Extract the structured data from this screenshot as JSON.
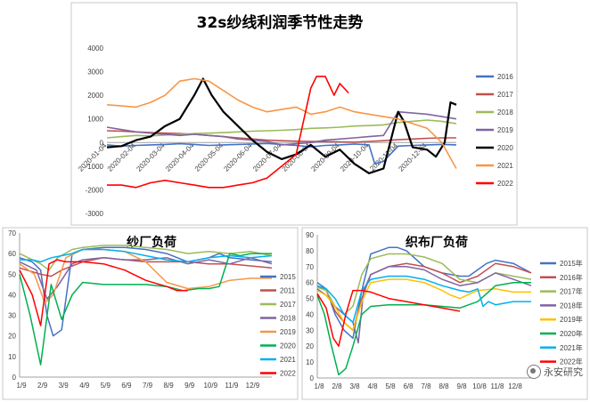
{
  "watermark": "永安研究",
  "chart_data": [
    {
      "type": "line",
      "title": "32s纱线利润季节性走势",
      "yticks": [
        4000,
        3000,
        2000,
        1000,
        0,
        -1000,
        -2000,
        -3000
      ],
      "ylim": [
        -3000,
        4000
      ],
      "xticks": [
        "2020-01-04",
        "2020-02-04",
        "2020-03-04",
        "2020-04-04",
        "2020-05-04",
        "2020-06-04",
        "2020-07-04",
        "2020-08-04",
        "2020-09-04",
        "2020-10-04",
        "2020-11-04",
        "2020-12-04"
      ],
      "xlim": [
        0,
        12
      ],
      "series": [
        {
          "name": "2016",
          "color": "#4472C4",
          "width": 1.6,
          "x": [
            0,
            0.5,
            1,
            1.5,
            2,
            2.5,
            3,
            3.5,
            4,
            4.5,
            5,
            5.5,
            6,
            6.5,
            7,
            7.5,
            8,
            8.5,
            9,
            9.2,
            9.5,
            10,
            10.5,
            11,
            11.5,
            12
          ],
          "y": [
            -100,
            -150,
            -120,
            -100,
            -80,
            -50,
            -80,
            -120,
            -100,
            -80,
            -60,
            -40,
            -80,
            -120,
            -180,
            -120,
            -100,
            -60,
            -100,
            -900,
            -800,
            -150,
            -120,
            -100,
            -80,
            -100
          ]
        },
        {
          "name": "2017",
          "color": "#C0504D",
          "width": 1.6,
          "x": [
            0,
            0.5,
            1,
            1.5,
            2,
            2.5,
            3,
            3.5,
            4,
            4.5,
            5,
            5.5,
            6,
            6.5,
            7,
            7.5,
            8,
            8.5,
            9,
            9.5,
            10,
            10.5,
            11,
            11.5,
            12
          ],
          "y": [
            500,
            480,
            450,
            420,
            400,
            380,
            350,
            300,
            250,
            200,
            150,
            100,
            80,
            60,
            50,
            40,
            30,
            20,
            50,
            80,
            120,
            150,
            180,
            200,
            200
          ]
        },
        {
          "name": "2018",
          "color": "#9BBB59",
          "width": 1.6,
          "x": [
            0,
            0.5,
            1,
            1.5,
            2,
            2.5,
            3,
            3.5,
            4,
            4.5,
            5,
            5.5,
            6,
            6.5,
            7,
            7.5,
            8,
            8.5,
            9,
            9.5,
            10,
            10.5,
            11,
            11.5,
            12
          ],
          "y": [
            200,
            250,
            300,
            280,
            320,
            350,
            380,
            400,
            420,
            450,
            480,
            500,
            520,
            550,
            600,
            620,
            650,
            700,
            720,
            750,
            850,
            900,
            950,
            900,
            800
          ]
        },
        {
          "name": "2019",
          "color": "#8064A2",
          "width": 1.6,
          "x": [
            0,
            0.5,
            1,
            1.5,
            2,
            2.5,
            3,
            3.5,
            4,
            4.5,
            5,
            5.5,
            6,
            6.5,
            7,
            7.5,
            8,
            8.5,
            9,
            9.5,
            10,
            10.5,
            11,
            11.5,
            12
          ],
          "y": [
            650,
            550,
            450,
            400,
            350,
            300,
            350,
            300,
            250,
            150,
            100,
            50,
            -100,
            -50,
            0,
            100,
            150,
            200,
            250,
            300,
            1300,
            1250,
            1200,
            1100,
            1000
          ]
        },
        {
          "name": "2020",
          "color": "#000000",
          "width": 2.2,
          "x": [
            0,
            0.5,
            1,
            1.5,
            2,
            2.5,
            3,
            3.3,
            3.6,
            4,
            4.5,
            5,
            5.5,
            6,
            6.5,
            7,
            7.5,
            8,
            8.5,
            9,
            9.5,
            10,
            10.2,
            10.5,
            11,
            11.3,
            11.6,
            11.8,
            12
          ],
          "y": [
            -200,
            -150,
            100,
            250,
            700,
            1000,
            2000,
            2700,
            2000,
            1300,
            700,
            100,
            -400,
            -700,
            -500,
            -100,
            -600,
            -300,
            -900,
            -1300,
            -1100,
            1300,
            900,
            -200,
            -300,
            -600,
            0,
            1700,
            1600
          ]
        },
        {
          "name": "2021",
          "color": "#F79646",
          "width": 1.6,
          "x": [
            0,
            0.5,
            1,
            1.5,
            2,
            2.5,
            3,
            3.5,
            4,
            4.5,
            5,
            5.5,
            6,
            6.5,
            7,
            7.5,
            8,
            8.5,
            9,
            9.5,
            10,
            10.5,
            11,
            11.5,
            12
          ],
          "y": [
            1600,
            1550,
            1500,
            1700,
            2000,
            2600,
            2700,
            2600,
            2200,
            1800,
            1500,
            1300,
            1400,
            1500,
            1200,
            1300,
            1500,
            1300,
            1200,
            1100,
            1000,
            800,
            600,
            0,
            -1100
          ]
        },
        {
          "name": "2022",
          "color": "#FF0000",
          "width": 1.6,
          "x": [
            0,
            0.5,
            1,
            1.5,
            2,
            2.5,
            3,
            3.5,
            4,
            4.5,
            5,
            5.5,
            6,
            6.5,
            7,
            7.2,
            7.5,
            7.8,
            8,
            8.3
          ],
          "y": [
            -1800,
            -1800,
            -1900,
            -1700,
            -1600,
            -1700,
            -1800,
            -1900,
            -1900,
            -1800,
            -1700,
            -1500,
            -1000,
            -500,
            2300,
            2800,
            2800,
            2000,
            2500,
            2100
          ]
        }
      ]
    },
    {
      "type": "line",
      "title": "纱厂负荷",
      "yticks": [
        70,
        60,
        50,
        40,
        30,
        20,
        10,
        0
      ],
      "ylim": [
        0,
        70
      ],
      "xticks": [
        "1/9",
        "2/9",
        "3/9",
        "4/9",
        "5/9",
        "6/9",
        "7/9",
        "8/9",
        "9/9",
        "10/9",
        "11/9",
        "12/9"
      ],
      "xlim": [
        0,
        12
      ],
      "series": [
        {
          "name": "2015",
          "color": "#4472C4",
          "width": 1.5,
          "x": [
            0,
            0.6,
            1,
            1.3,
            1.6,
            2,
            2.5,
            3,
            4,
            5,
            6,
            7,
            8,
            9,
            9.5,
            10,
            11,
            12
          ],
          "y": [
            58,
            56,
            52,
            30,
            20,
            23,
            60,
            62,
            63,
            63,
            62,
            60,
            56,
            58,
            60,
            58,
            57,
            56
          ]
        },
        {
          "name": "2011",
          "color": "#C0504D",
          "width": 1.5,
          "x": [
            0,
            1,
            1.5,
            2,
            3,
            4,
            5,
            6,
            7,
            8,
            9,
            10,
            11,
            12
          ],
          "y": [
            53,
            50,
            49,
            52,
            56,
            58,
            57,
            56,
            56,
            56,
            55,
            55,
            54,
            53
          ]
        },
        {
          "name": "2017",
          "color": "#9BBB59",
          "width": 1.5,
          "x": [
            0,
            1,
            1.4,
            1.8,
            2.5,
            3,
            4,
            5,
            6,
            7,
            8,
            9,
            10,
            11,
            12
          ],
          "y": [
            60,
            55,
            52,
            58,
            62,
            63,
            64,
            64,
            63,
            62,
            60,
            61,
            60,
            61,
            59
          ]
        },
        {
          "name": "2018",
          "color": "#8064A2",
          "width": 1.5,
          "x": [
            0,
            0.8,
            1.3,
            1.8,
            2.5,
            3,
            4,
            5,
            6,
            7,
            8,
            9,
            10,
            11,
            12
          ],
          "y": [
            56,
            52,
            38,
            44,
            55,
            57,
            58,
            57,
            57,
            58,
            55,
            57,
            55,
            58,
            55
          ]
        },
        {
          "name": "2019",
          "color": "#F79646",
          "width": 1.5,
          "x": [
            0,
            0.7,
            1.2,
            1.6,
            2.2,
            3,
            4,
            5,
            6,
            7,
            8,
            9,
            10,
            11,
            12
          ],
          "y": [
            55,
            50,
            36,
            40,
            58,
            62,
            62,
            61,
            56,
            46,
            43,
            44,
            47,
            48,
            48
          ]
        },
        {
          "name": "2020",
          "color": "#00B050",
          "width": 1.5,
          "x": [
            0,
            0.5,
            1,
            1.5,
            2,
            2.5,
            3,
            4,
            5,
            6,
            7,
            7.8,
            8.5,
            9,
            9.5,
            10,
            10.5,
            11,
            12
          ],
          "y": [
            50,
            30,
            6,
            45,
            28,
            40,
            46,
            45,
            45,
            45,
            44,
            42,
            43,
            43,
            44,
            60,
            59,
            60,
            60
          ]
        },
        {
          "name": "2021",
          "color": "#00B0F0",
          "width": 1.5,
          "x": [
            0,
            0.6,
            1,
            1.5,
            2,
            2.5,
            3,
            4,
            5,
            6,
            7,
            8,
            9,
            10,
            11,
            12
          ],
          "y": [
            57,
            57,
            56,
            58,
            59,
            60,
            62,
            62,
            61,
            59,
            57,
            56,
            58,
            59,
            58,
            59
          ]
        },
        {
          "name": "2022",
          "color": "#FF0000",
          "width": 1.5,
          "x": [
            0,
            0.6,
            1,
            1.4,
            1.8,
            2.2,
            3,
            4,
            5,
            6,
            7,
            7.5,
            8
          ],
          "y": [
            52,
            40,
            25,
            55,
            57,
            56,
            56,
            55,
            52,
            47,
            44,
            42,
            42
          ]
        }
      ]
    },
    {
      "type": "line",
      "title": "织布厂负荷",
      "yticks": [
        90,
        80,
        70,
        60,
        50,
        40,
        30,
        20,
        10,
        0
      ],
      "ylim": [
        0,
        90
      ],
      "xticks": [
        "1/8",
        "2/8",
        "3/8",
        "4/8",
        "5/8",
        "6/8",
        "7/8",
        "8/8",
        "9/8",
        "10/8",
        "11/8",
        "12/8"
      ],
      "xlim": [
        0,
        12
      ],
      "series": [
        {
          "name": "2015年",
          "color": "#4472C4",
          "width": 1.5,
          "x": [
            0,
            0.5,
            1,
            1.5,
            2,
            2.5,
            3,
            3.5,
            4,
            4.5,
            5,
            6,
            7,
            8,
            8.5,
            9,
            9.5,
            10,
            11,
            12
          ],
          "y": [
            60,
            56,
            40,
            30,
            25,
            55,
            78,
            80,
            82,
            82,
            80,
            70,
            66,
            64,
            64,
            68,
            72,
            74,
            72,
            66
          ]
        },
        {
          "name": "2016年",
          "color": "#C0504D",
          "width": 1.5,
          "x": [
            0,
            0.5,
            1,
            1.5,
            2,
            2.5,
            3,
            4,
            5,
            6,
            7,
            8,
            9,
            10,
            11,
            12
          ],
          "y": [
            58,
            55,
            42,
            35,
            30,
            50,
            65,
            70,
            72,
            70,
            66,
            60,
            64,
            72,
            70,
            66
          ]
        },
        {
          "name": "2017年",
          "color": "#9BBB59",
          "width": 1.5,
          "x": [
            0,
            0.5,
            1,
            1.5,
            2,
            2.5,
            3,
            4,
            5,
            6,
            7,
            8,
            9,
            10,
            11,
            12
          ],
          "y": [
            57,
            55,
            45,
            40,
            45,
            65,
            75,
            78,
            78,
            76,
            72,
            62,
            60,
            66,
            64,
            62
          ]
        },
        {
          "name": "2018年",
          "color": "#8064A2",
          "width": 1.5,
          "x": [
            0,
            0.5,
            1,
            1.5,
            2,
            2.3,
            2.6,
            3,
            4,
            5,
            6,
            7,
            8,
            9,
            10,
            11,
            12
          ],
          "y": [
            56,
            52,
            45,
            40,
            35,
            22,
            55,
            65,
            70,
            70,
            68,
            62,
            58,
            60,
            66,
            62,
            58
          ]
        },
        {
          "name": "2019年",
          "color": "#FFC000",
          "width": 1.5,
          "x": [
            0,
            0.5,
            1,
            1.5,
            2,
            2.5,
            3,
            4,
            5,
            6,
            7,
            7.5,
            8,
            9,
            10,
            11,
            12
          ],
          "y": [
            55,
            52,
            45,
            35,
            30,
            48,
            60,
            62,
            62,
            60,
            55,
            52,
            50,
            55,
            56,
            54,
            54
          ]
        },
        {
          "name": "2020年",
          "color": "#00B050",
          "width": 1.5,
          "x": [
            0,
            0.4,
            0.8,
            1.2,
            1.6,
            2,
            2.5,
            3,
            4,
            5,
            6,
            7,
            8,
            9,
            10,
            11,
            12
          ],
          "y": [
            52,
            40,
            20,
            2,
            6,
            20,
            40,
            45,
            46,
            46,
            46,
            45,
            44,
            48,
            58,
            60,
            60
          ]
        },
        {
          "name": "2021年",
          "color": "#00B0F0",
          "width": 1.5,
          "x": [
            0,
            0.5,
            1,
            1.5,
            2,
            2.5,
            3,
            4,
            5,
            6,
            7,
            8,
            8.5,
            9,
            9.3,
            9.6,
            10,
            11,
            12
          ],
          "y": [
            58,
            56,
            50,
            40,
            35,
            55,
            62,
            64,
            64,
            62,
            58,
            55,
            54,
            56,
            45,
            48,
            46,
            48,
            48
          ]
        },
        {
          "name": "2022年",
          "color": "#FF0000",
          "width": 1.5,
          "x": [
            0,
            0.5,
            0.9,
            1.2,
            1.6,
            2,
            2.5,
            3,
            4,
            5,
            6,
            7,
            8
          ],
          "y": [
            53,
            44,
            25,
            20,
            40,
            55,
            55,
            54,
            50,
            48,
            46,
            44,
            42
          ]
        }
      ]
    }
  ]
}
